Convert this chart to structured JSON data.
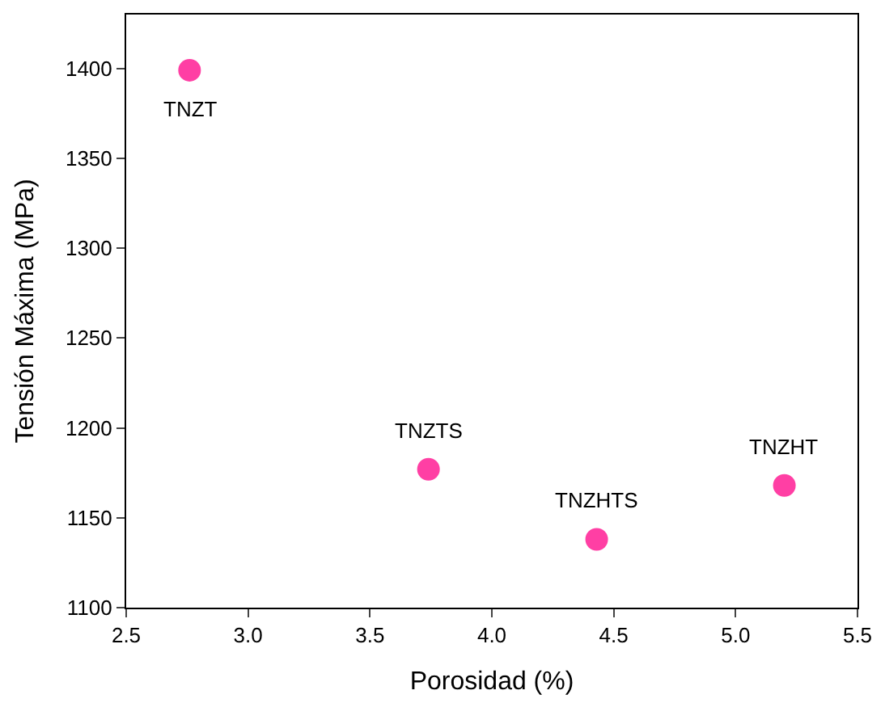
{
  "chart_data": {
    "type": "scatter",
    "xlabel": "Porosidad (%)",
    "ylabel": "Tensión Máxima (MPa)",
    "x": [
      2.76,
      3.74,
      4.43,
      5.2
    ],
    "series": [
      {
        "color": "#ff3fa4",
        "values": [
          1399,
          1177,
          1138,
          1168
        ]
      }
    ],
    "marker": "circle",
    "xlim": [
      2.5,
      5.5
    ],
    "xticks": [
      2.5,
      {
        "value": 3,
        "label": "3.0"
      },
      3.5,
      {
        "value": 4,
        "label": "4.0"
      },
      4.5,
      {
        "value": 5,
        "label": "5.0"
      },
      5.5
    ],
    "ylim": [
      1100,
      1430
    ],
    "yticks": [
      1100,
      1150,
      1200,
      1250,
      1300,
      1350,
      1400
    ],
    "annotations": [
      {
        "text": "TNZT",
        "x": 2.76,
        "y": 1399
      },
      {
        "text": "TNZTS",
        "x": 3.74,
        "y": 1177
      },
      {
        "text": "TNZHTS",
        "x": 4.43,
        "y": 1138
      },
      {
        "text": "TNZHT",
        "x": 5.2,
        "y": 1168
      }
    ]
  }
}
